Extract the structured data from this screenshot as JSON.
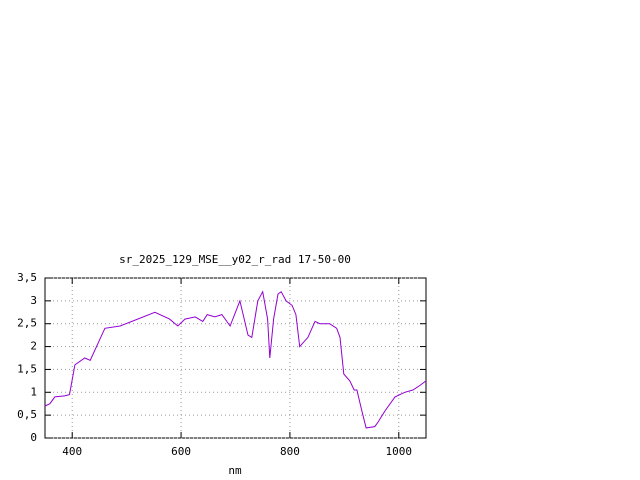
{
  "chart_data": {
    "type": "line",
    "title": "sr_2025_129_MSE__y02_r_rad 17-50-00",
    "xlabel": "nm",
    "x": [
      350,
      359,
      368,
      386,
      395,
      405,
      423,
      433,
      460,
      488,
      552,
      579,
      594,
      607,
      626,
      640,
      648,
      662,
      675,
      690,
      708,
      723,
      730,
      741,
      750,
      759,
      763,
      770,
      778,
      784,
      793,
      804,
      811,
      818,
      833,
      846,
      855,
      873,
      886,
      892,
      899,
      910,
      918,
      923,
      932,
      940,
      956,
      962,
      975,
      993,
      1011,
      1026,
      1039,
      1050
    ],
    "series": [
      {
        "name": "sr_2025_129_MSE__y02_r_rad",
        "color": "#9400d3",
        "values": [
          0.7,
          0.75,
          0.9,
          0.92,
          0.95,
          1.6,
          1.75,
          1.7,
          2.4,
          2.45,
          2.75,
          2.6,
          2.45,
          2.6,
          2.65,
          2.55,
          2.7,
          2.65,
          2.7,
          2.45,
          3.0,
          2.25,
          2.2,
          3.0,
          3.2,
          2.6,
          1.75,
          2.6,
          3.15,
          3.2,
          3.0,
          2.9,
          2.7,
          2.0,
          2.2,
          2.55,
          2.5,
          2.5,
          2.4,
          2.2,
          1.4,
          1.25,
          1.05,
          1.05,
          0.6,
          0.22,
          0.25,
          0.35,
          0.6,
          0.9,
          1.0,
          1.05,
          1.15,
          1.25
        ]
      }
    ],
    "xlim": [
      350,
      1050
    ],
    "xticks": [
      400,
      600,
      800,
      1000
    ],
    "ylim": [
      0,
      3.5
    ],
    "yticks": [
      0,
      {
        "value": 0.5,
        "label": "0,5"
      },
      1,
      {
        "value": 1.5,
        "label": "1,5"
      },
      2,
      {
        "value": 2.5,
        "label": "2,5"
      },
      3,
      {
        "value": 3.5,
        "label": "3,5"
      }
    ],
    "grid": true
  }
}
